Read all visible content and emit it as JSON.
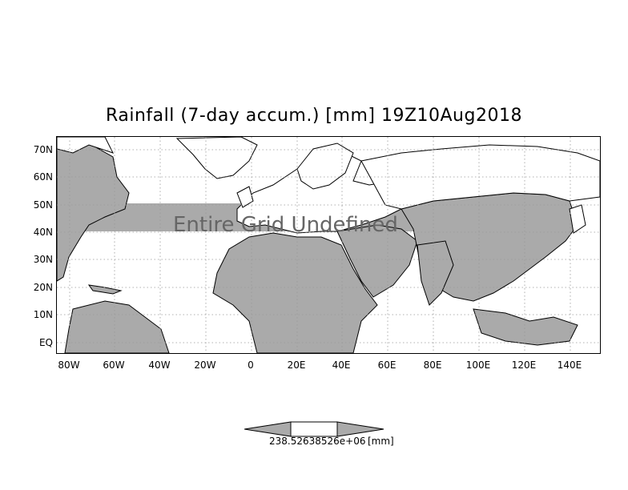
{
  "title": "Rainfall (7-day accum.) [mm] 19Z10Aug2018",
  "overlay_text": "Entire Grid Undefined",
  "lat_labels": [
    "70N",
    "60N",
    "50N",
    "40N",
    "30N",
    "20N",
    "10N",
    "EQ"
  ],
  "lon_labels": [
    "80W",
    "60W",
    "40W",
    "20W",
    "0",
    "20E",
    "40E",
    "60E",
    "80E",
    "100E",
    "120E",
    "140E"
  ],
  "colorbar": {
    "value_label": "238.52638526e+06",
    "unit_label": "[mm]"
  },
  "colors": {
    "land": "#aaaaaa",
    "ocean": "#ffffff",
    "grid": "#999999",
    "boundary": "#000000",
    "undefined_band": "#aaaaaa"
  }
}
